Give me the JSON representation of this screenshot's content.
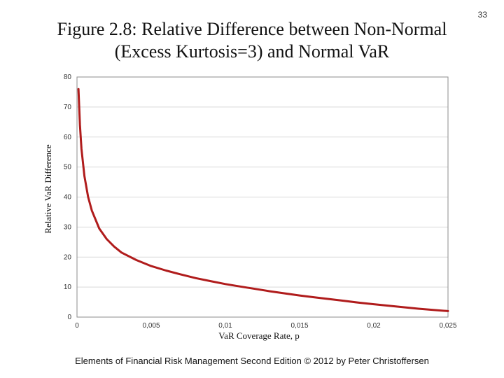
{
  "page_number": "33",
  "title": "Figure 2.8: Relative Difference between Non-Normal (Excess Kurtosis=3) and Normal VaR",
  "footer": "Elements of Financial Risk Management Second Edition © 2012  by Peter Christoffersen",
  "chart_data": {
    "type": "line",
    "title": "Figure 2.8: Relative Difference between Non-Normal (Excess Kurtosis=3) and Normal VaR",
    "xlabel": "VaR Coverage Rate, p",
    "ylabel": "Relative VaR Difference",
    "xlim": [
      0,
      0.025
    ],
    "ylim": [
      0,
      80
    ],
    "x_ticks": [
      "0",
      "0,005",
      "0,01",
      "0,015",
      "0,02",
      "0,025"
    ],
    "y_ticks": [
      "0",
      "10",
      "20",
      "30",
      "40",
      "50",
      "60",
      "70",
      "80"
    ],
    "grid": true,
    "legend": "none",
    "color": "#b01c1c",
    "series": [
      {
        "x": [
          0.0001,
          0.0002,
          0.0003,
          0.0005,
          0.00075,
          0.001,
          0.0015,
          0.002,
          0.0025,
          0.003,
          0.004,
          0.005,
          0.006,
          0.007,
          0.008,
          0.009,
          0.01,
          0.011,
          0.012,
          0.013,
          0.014,
          0.015,
          0.016,
          0.017,
          0.018,
          0.019,
          0.02,
          0.021,
          0.022,
          0.023,
          0.024,
          0.025
        ],
        "y": [
          76,
          64,
          56,
          47,
          40,
          35.5,
          29.5,
          26,
          23.5,
          21.5,
          19,
          17,
          15.5,
          14.2,
          13,
          12,
          11,
          10.2,
          9.4,
          8.6,
          7.9,
          7.2,
          6.6,
          6,
          5.4,
          4.8,
          4.3,
          3.8,
          3.3,
          2.8,
          2.4,
          2
        ]
      }
    ]
  }
}
